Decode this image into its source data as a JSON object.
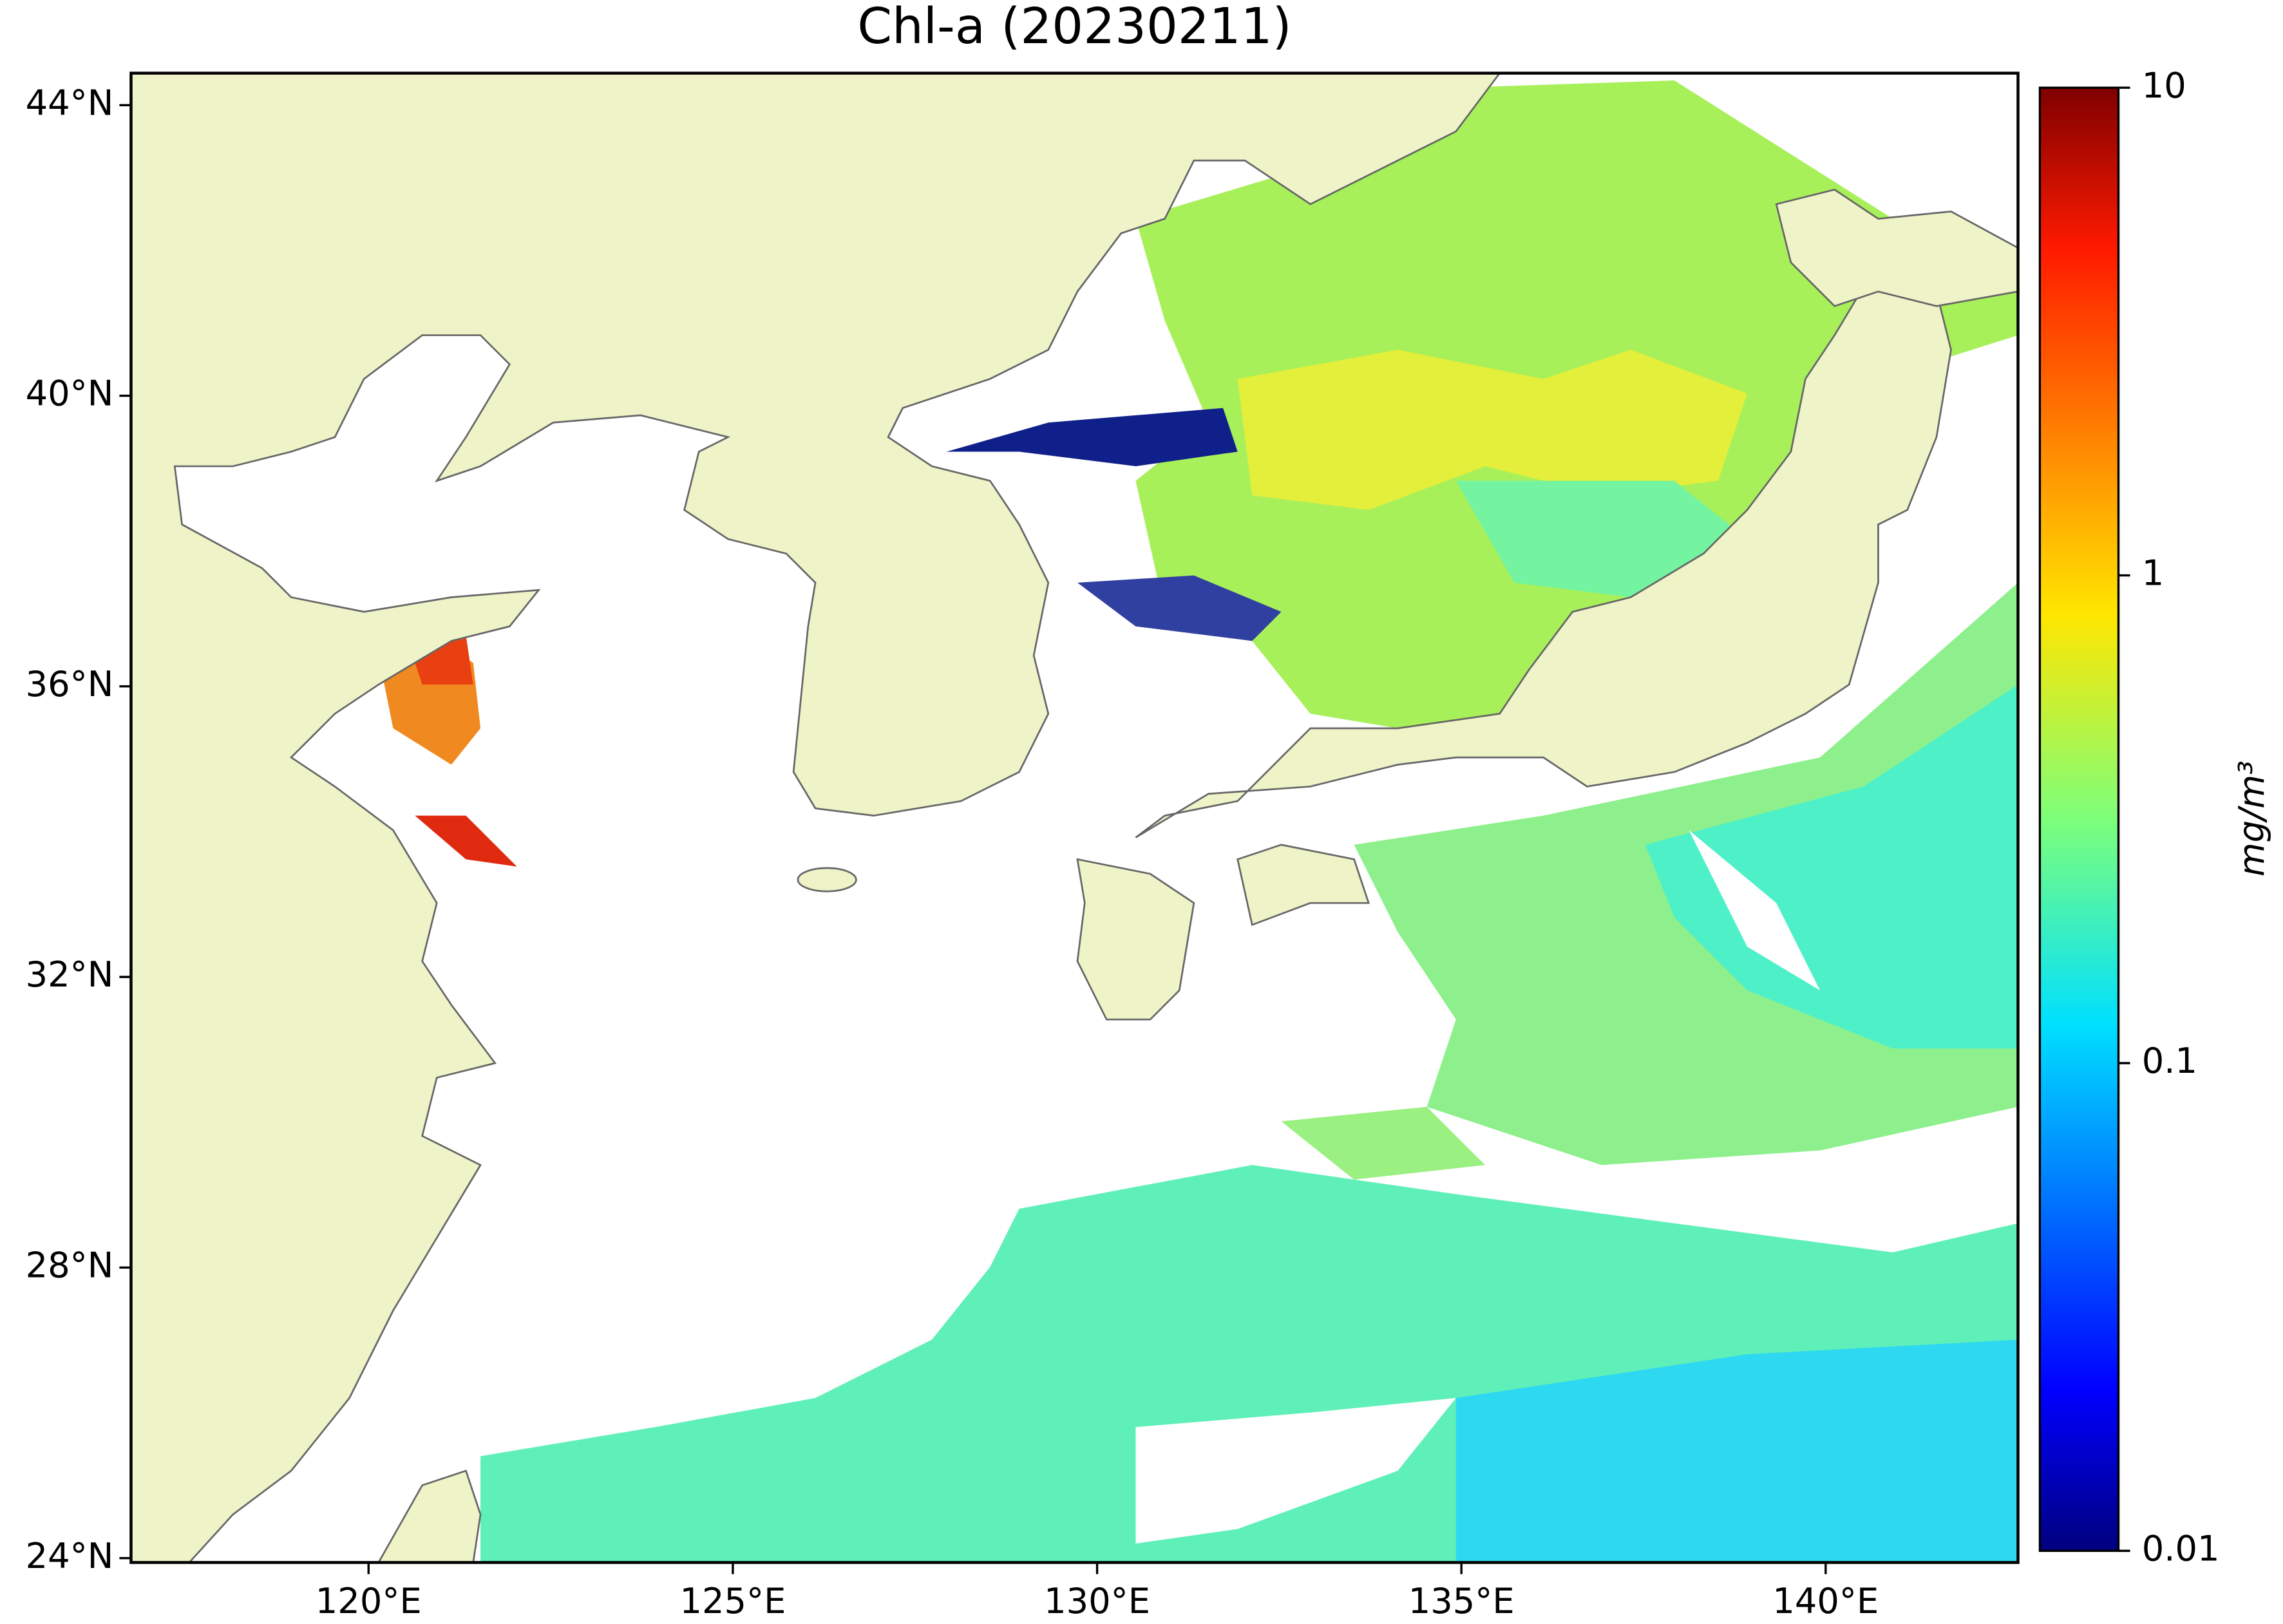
{
  "chart_data": {
    "type": "map",
    "title": "Chl-a (20230211)",
    "xlim": [
      116.74,
      142.64
    ],
    "ylim": [
      23.94,
      44.44
    ],
    "xticks": [
      {
        "value": 120,
        "label": "120°E"
      },
      {
        "value": 125,
        "label": "125°E"
      },
      {
        "value": 130,
        "label": "130°E"
      },
      {
        "value": 135,
        "label": "135°E"
      },
      {
        "value": 140,
        "label": "140°E"
      }
    ],
    "yticks": [
      {
        "value": 24,
        "label": "24°N"
      },
      {
        "value": 28,
        "label": "28°N"
      },
      {
        "value": 32,
        "label": "32°N"
      },
      {
        "value": 36,
        "label": "36°N"
      },
      {
        "value": 40,
        "label": "40°N"
      },
      {
        "value": 44,
        "label": "44°N"
      }
    ],
    "colorbar": {
      "label": "mg/m³",
      "scale": "log",
      "lim": [
        0.01,
        10
      ],
      "ticks": [
        0.01,
        0.1,
        1,
        10
      ]
    }
  }
}
